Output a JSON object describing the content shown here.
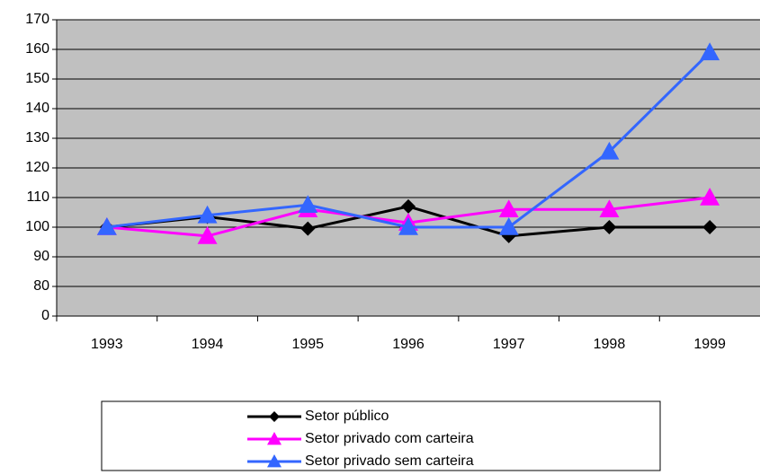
{
  "chart_data": {
    "type": "line",
    "categories": [
      "1993",
      "1994",
      "1995",
      "1996",
      "1997",
      "1998",
      "1999"
    ],
    "series": [
      {
        "name": "Setor público",
        "color": "#000000",
        "marker": "diamond",
        "values": [
          100,
          103.5,
          99.5,
          107,
          97,
          100,
          100
        ]
      },
      {
        "name": "Setor privado com  carteira",
        "color": "#ff00ff",
        "marker": "triangle",
        "values": [
          100,
          97,
          106,
          101.5,
          106,
          106,
          110
        ]
      },
      {
        "name": "Setor privado sem carteira",
        "color": "#3366ff",
        "marker": "triangle",
        "values": [
          100,
          104,
          107.5,
          100,
          100,
          125.5,
          159
        ]
      }
    ],
    "ylim": [
      0,
      170
    ],
    "yticks": [
      0,
      80,
      90,
      100,
      110,
      120,
      130,
      140,
      150,
      160,
      170
    ],
    "y_axis_break": true,
    "grid": true,
    "plot_background": "#c0c0c0",
    "legend": "bottom"
  }
}
